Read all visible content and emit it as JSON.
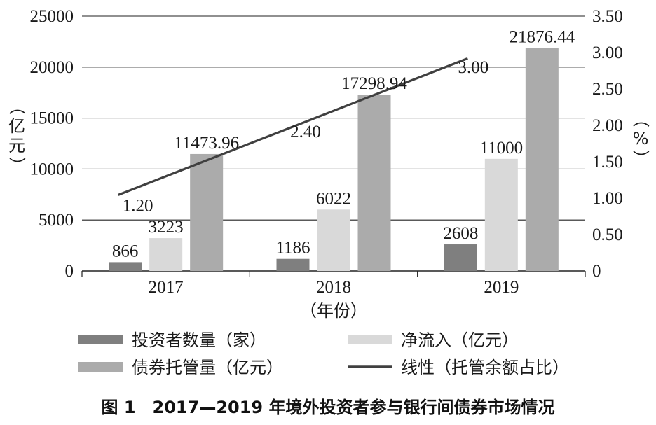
{
  "chart_data": {
    "type": "bar",
    "categories": [
      "2017",
      "2018",
      "2019"
    ],
    "series": [
      {
        "name": "投资者数量（家）",
        "values": [
          866,
          1186,
          2608
        ],
        "color": "#7f7f7f",
        "kind": "bar",
        "axis": "left"
      },
      {
        "name": "净流入（亿元）",
        "values": [
          3223,
          6022,
          11000
        ],
        "color": "#d9d9d9",
        "kind": "bar",
        "axis": "left"
      },
      {
        "name": "债券托管量（亿元）",
        "values": [
          11473.96,
          17298.94,
          21876.44
        ],
        "color": "#ababab",
        "kind": "bar",
        "axis": "left"
      },
      {
        "name": "线性（托管余额占比）",
        "values": [
          1.2,
          2.4,
          3.0
        ],
        "color": "#404040",
        "kind": "trendline",
        "axis": "right"
      }
    ],
    "data_labels": [
      [
        "866",
        "1186",
        "2608"
      ],
      [
        "3223",
        "6022",
        "11000"
      ],
      [
        "11473.96",
        "17298.94",
        "21876.44"
      ],
      [
        "1.20",
        "2.40",
        "3.00"
      ]
    ],
    "left_axis": {
      "label": "（亿元）",
      "ylim": [
        0,
        25000
      ],
      "ticks": [
        "0",
        "5000",
        "10000",
        "15000",
        "20000",
        "25000"
      ]
    },
    "right_axis": {
      "label": "（%）",
      "ylim": [
        0,
        3.5
      ],
      "ticks": [
        "0",
        "0.50",
        "1.00",
        "1.50",
        "2.00",
        "2.50",
        "3.00",
        "3.50"
      ]
    },
    "xlabel": "（年份）",
    "grid": true,
    "legend_position": "bottom",
    "caption": "图 1　2017—2019 年境外投资者参与银行间债券市场情况"
  }
}
